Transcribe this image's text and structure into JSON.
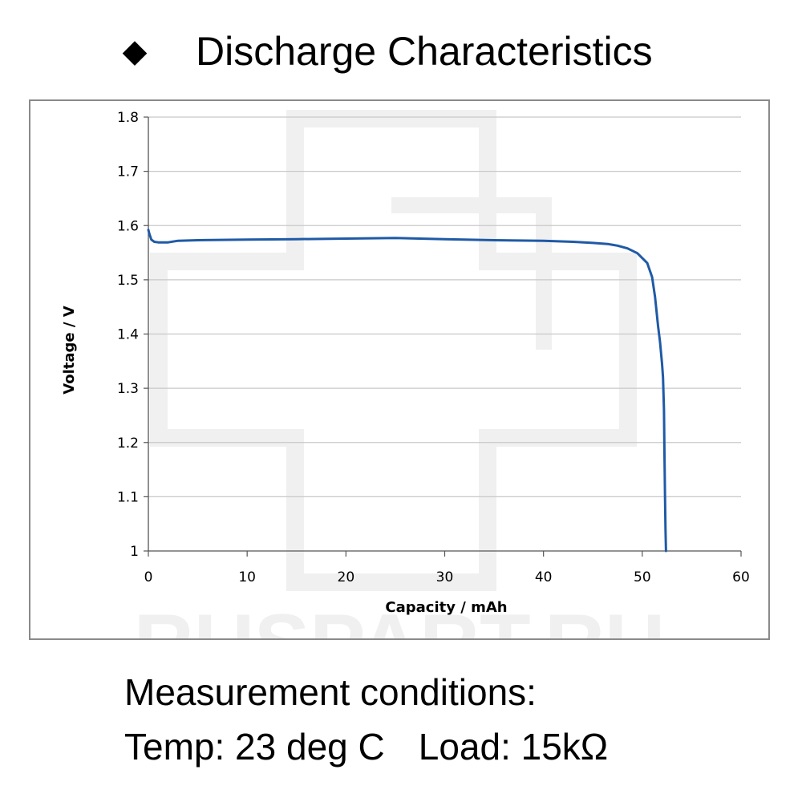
{
  "header": {
    "bullet": "◆",
    "title": "Discharge Characteristics"
  },
  "watermark": {
    "text": "RUSPART.RU",
    "color": "#ececec"
  },
  "chart_data": {
    "type": "line",
    "title": "",
    "xlabel": "Capacity  /  mAh",
    "ylabel": "Voltage  /  V",
    "xlim": [
      0,
      60
    ],
    "ylim": [
      1.0,
      1.8
    ],
    "x_ticks": [
      "0",
      "10",
      "20",
      "30",
      "40",
      "50",
      "60"
    ],
    "x_tick_values": [
      0,
      10,
      20,
      30,
      40,
      50,
      60
    ],
    "y_ticks": [
      "1",
      "1.1",
      "1.2",
      "1.3",
      "1.4",
      "1.5",
      "1.6",
      "1.7",
      "1.8"
    ],
    "y_tick_values": [
      1.0,
      1.1,
      1.2,
      1.3,
      1.4,
      1.5,
      1.6,
      1.7,
      1.8
    ],
    "grid": "horizontal",
    "legend": "none",
    "line_color": "#1f5aa6",
    "series": [
      {
        "x": [
          0,
          0.1,
          0.3,
          0.6,
          1.0,
          2.0,
          3.0,
          5.0,
          10.0,
          15.0,
          20.0,
          25.0,
          30.0,
          35.0,
          40.0,
          43.0,
          45.0,
          46.5,
          47.5,
          48.5,
          49.5,
          50.5,
          51.0,
          51.3,
          51.6,
          51.8,
          52.0,
          52.1,
          52.2,
          52.25,
          52.3,
          52.35,
          52.4
        ],
        "y": [
          1.592,
          1.585,
          1.574,
          1.57,
          1.569,
          1.569,
          1.572,
          1.573,
          1.574,
          1.575,
          1.576,
          1.577,
          1.575,
          1.573,
          1.572,
          1.57,
          1.568,
          1.566,
          1.563,
          1.558,
          1.549,
          1.531,
          1.505,
          1.468,
          1.415,
          1.385,
          1.345,
          1.32,
          1.26,
          1.18,
          1.1,
          1.04,
          1.0
        ]
      }
    ]
  },
  "conditions": {
    "heading": "Measurement conditions:",
    "temp": "Temp: 23 deg C",
    "load": "Load: 15kΩ"
  }
}
